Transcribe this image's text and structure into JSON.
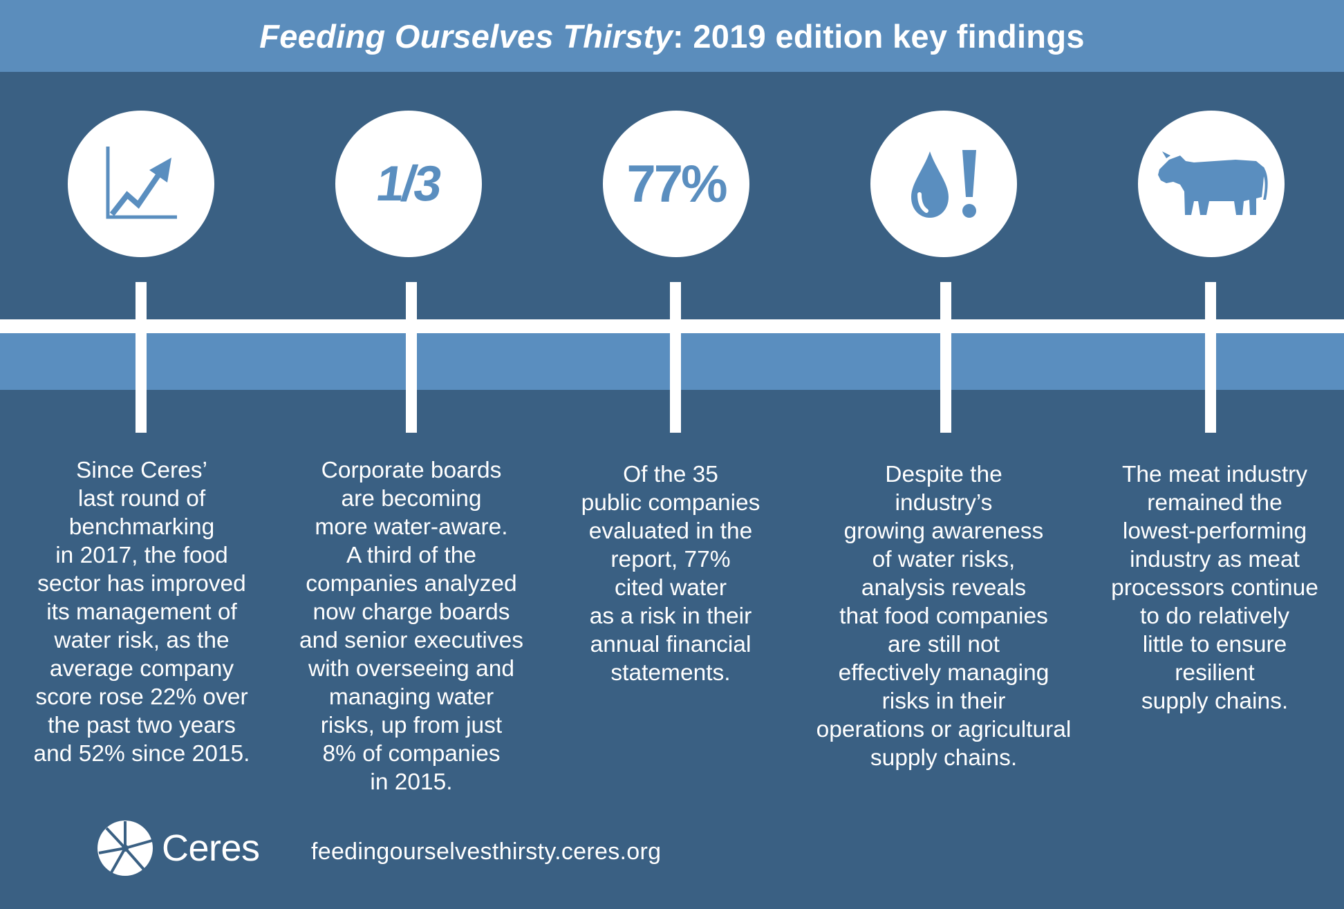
{
  "header": {
    "title_italic": "Feeding Ourselves Thirsty",
    "title_rest": ": 2019 edition key findings"
  },
  "colors": {
    "header_bg": "#5b8dbc",
    "panel_bg": "#3a6083",
    "accent_blue": "#5a8ebf",
    "white": "#ffffff"
  },
  "findings": [
    {
      "icon": "trend-chart-icon",
      "text": "Since Ceres’\nlast round of\nbenchmarking\nin 2017, the food\nsector has improved\nits management of\nwater risk, as the\naverage company\nscore rose 22% over\nthe past two years\nand 52% since 2015."
    },
    {
      "icon": "one-third-icon",
      "figure": "1/3",
      "text": "Corporate boards\nare becoming\nmore water-aware.\nA third of the\ncompanies analyzed\nnow charge boards\nand senior executives\nwith overseeing and\nmanaging water\nrisks, up from just\n8% of companies\nin 2015."
    },
    {
      "icon": "percent-icon",
      "figure": "77%",
      "text": "Of the 35\npublic companies\nevaluated in the\nreport, 77%\ncited water\nas a risk in their\nannual financial\nstatements."
    },
    {
      "icon": "water-drop-alert-icon",
      "text": "Despite the\nindustry’s\ngrowing awareness\nof water risks,\nanalysis reveals\nthat food companies\nare still not\neffectively managing\nrisks in their\noperations or agricultural\nsupply chains."
    },
    {
      "icon": "cow-icon",
      "text": "The meat industry\nremained the\nlowest-performing\nindustry as meat\nprocessors continue\nto do relatively\nlittle to ensure\nresilient\nsupply chains."
    }
  ],
  "footer": {
    "logo_name": "Ceres",
    "url": "feedingourselvesthirsty.ceres.org"
  }
}
